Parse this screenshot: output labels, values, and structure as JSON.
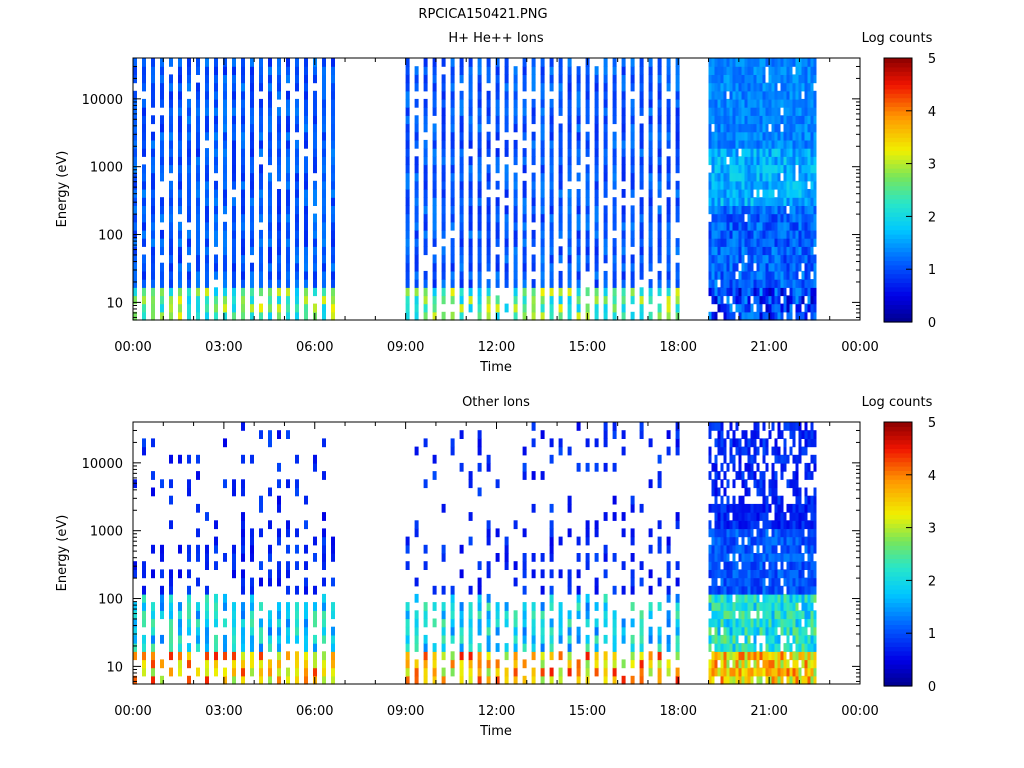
{
  "figure": {
    "title": "RPCICA150421.PNG"
  },
  "colors": {
    "data_gap": "#ffffff",
    "axes": "#000000"
  },
  "chart_data": [
    {
      "type": "heatmap",
      "title": "H+ He++ Ions",
      "xlabel": "Time",
      "ylabel": "Energy (eV)",
      "x_ticks": [
        "00:00",
        "03:00",
        "06:00",
        "09:00",
        "12:00",
        "15:00",
        "18:00",
        "21:00",
        "00:00"
      ],
      "x_range_hours": [
        0,
        24
      ],
      "y_scale": "log",
      "y_range": [
        5.5,
        40000
      ],
      "y_ticks": [
        10,
        100,
        1000,
        10000
      ],
      "y_tick_labels": [
        "10",
        "100",
        "1000",
        "10000"
      ],
      "colorbar": {
        "label": "Log counts",
        "range": [
          0,
          5
        ],
        "ticks": [
          "0",
          "1",
          "2",
          "3",
          "4",
          "5"
        ],
        "colormap": "rainbow (dark blue to dark red)"
      },
      "data_segments_hours": [
        [
          0.0,
          6.85
        ],
        [
          9.0,
          18.0
        ],
        [
          19.0,
          22.55
        ]
      ],
      "segment_styles": [
        "striped",
        "striped",
        "continuous"
      ],
      "description": "Spectrogram: low counts (log ~0.5-1) at high energies; moderate counts (log ~2-3) near 10-50 eV"
    },
    {
      "type": "heatmap",
      "title": "Other Ions",
      "xlabel": "Time",
      "ylabel": "Energy (eV)",
      "x_ticks": [
        "00:00",
        "03:00",
        "06:00",
        "09:00",
        "12:00",
        "15:00",
        "18:00",
        "21:00",
        "00:00"
      ],
      "x_range_hours": [
        0,
        24
      ],
      "y_scale": "log",
      "y_range": [
        5.5,
        40000
      ],
      "y_ticks": [
        10,
        100,
        1000,
        10000
      ],
      "y_tick_labels": [
        "10",
        "100",
        "1000",
        "10000"
      ],
      "colorbar": {
        "label": "Log counts",
        "range": [
          0,
          5
        ],
        "ticks": [
          "0",
          "1",
          "2",
          "3",
          "4",
          "5"
        ],
        "colormap": "rainbow (dark blue to dark red)"
      },
      "data_segments_hours": [
        [
          0.0,
          6.85
        ],
        [
          9.0,
          18.0
        ],
        [
          19.0,
          22.55
        ]
      ],
      "segment_styles": [
        "sparse-striped",
        "sparse-striped",
        "continuous"
      ],
      "description": "Spectrogram: sparse low counts at high energies; high counts (log ~3-4.5) below ~100 eV"
    }
  ]
}
